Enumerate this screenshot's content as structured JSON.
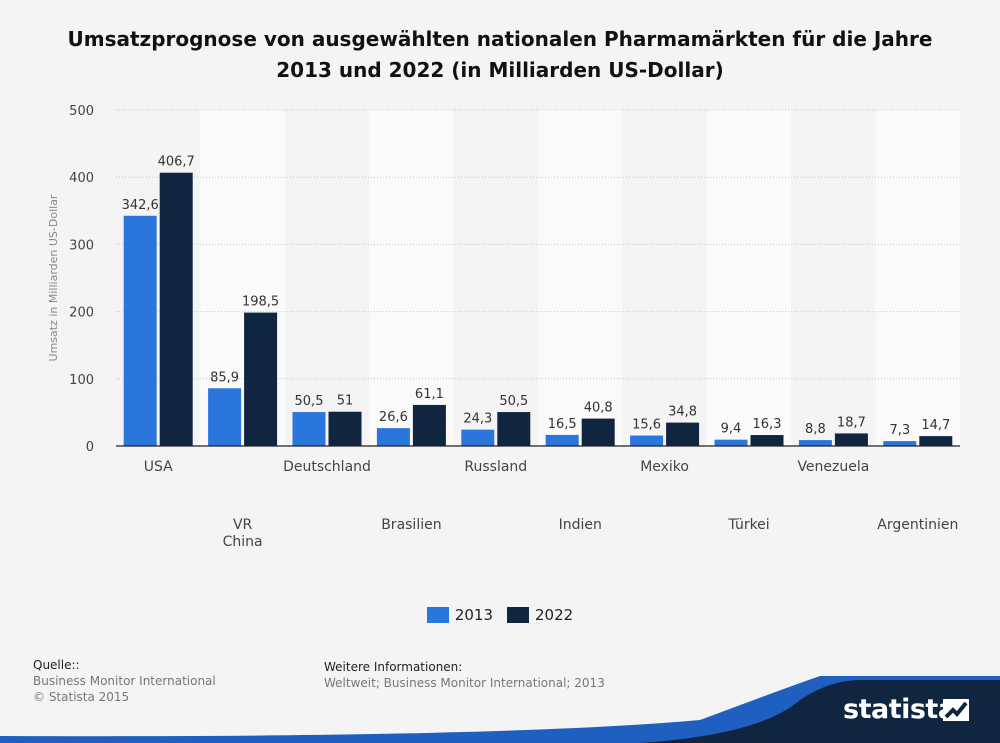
{
  "title": "Umsatzprognose von ausgewählten nationalen Pharmamärkten für die Jahre 2013 und 2022 (in Milliarden US-Dollar)",
  "legend": {
    "s1": "2013",
    "s2": "2022"
  },
  "footer": {
    "source_head": "Quelle::",
    "source_line1": "Business Monitor International",
    "source_line2": "© Statista 2015",
    "info_head": "Weitere Informationen:",
    "info_line": "Weltweit; Business Monitor International; 2013"
  },
  "brand": "statista",
  "colors": {
    "s2013": "#2a76dd",
    "s2022": "#0f2540",
    "background": "#f4f4f4",
    "band": "#fafafa"
  },
  "chart_data": {
    "type": "bar",
    "title": "Umsatzprognose von ausgewählten nationalen Pharmamärkten für die Jahre 2013 und 2022 (in Milliarden US-Dollar)",
    "ylabel": "Umsatz in Milliarden US-Dollar",
    "xlabel": "",
    "ylim": [
      0,
      500
    ],
    "yticks": [
      0,
      100,
      200,
      300,
      400,
      500
    ],
    "grid": true,
    "legend_position": "bottom",
    "categories": [
      [
        "USA"
      ],
      [
        "VR",
        "China"
      ],
      [
        "Deutschland"
      ],
      [
        "Brasilien"
      ],
      [
        "Russland"
      ],
      [
        "Indien"
      ],
      [
        "Mexiko"
      ],
      [
        "Türkei"
      ],
      [
        "Venezuela"
      ],
      [
        "Argentinien"
      ]
    ],
    "series": [
      {
        "name": "2013",
        "values": [
          342.6,
          85.9,
          50.5,
          26.6,
          24.3,
          16.5,
          15.6,
          9.4,
          8.8,
          7.3
        ],
        "labels": [
          "342,6",
          "85,9",
          "50,5",
          "26,6",
          "24,3",
          "16,5",
          "15,6",
          "9,4",
          "8,8",
          "7,3"
        ]
      },
      {
        "name": "2022",
        "values": [
          406.7,
          198.5,
          51,
          61.1,
          50.5,
          40.8,
          34.8,
          16.3,
          18.7,
          14.7
        ],
        "labels": [
          "406,7",
          "198,5",
          "51",
          "61,1",
          "50,5",
          "40,8",
          "34,8",
          "16,3",
          "18,7",
          "14,7"
        ]
      }
    ]
  }
}
